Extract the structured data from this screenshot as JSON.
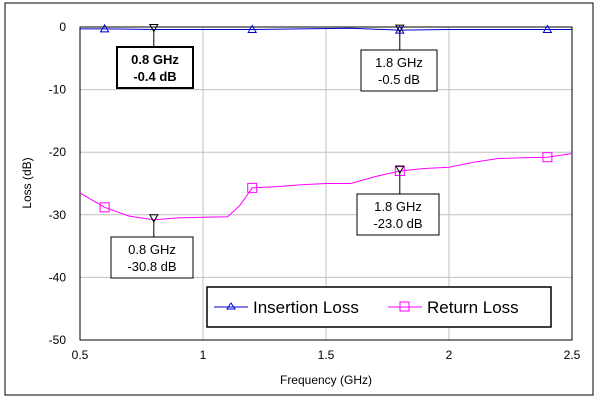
{
  "chart_data": {
    "type": "line",
    "xlabel": "Frequency (GHz)",
    "ylabel": "Loss (dB)",
    "xlim": [
      0.5,
      2.5
    ],
    "ylim": [
      -50,
      0
    ],
    "xticks": [
      "0.5",
      "1",
      "1.5",
      "2",
      "2.5"
    ],
    "yticks": [
      "0",
      "-10",
      "-20",
      "-30",
      "-40",
      "-50"
    ],
    "grid": true,
    "legend_position": "bottom-right",
    "colors": {
      "insertion": "#0000cc",
      "return": "#ff00ff",
      "grid": "#c0c0c0"
    },
    "series": [
      {
        "name": "Insertion Loss",
        "marker": "triangle-up",
        "x": [
          0.5,
          0.6,
          0.8,
          1.0,
          1.2,
          1.4,
          1.6,
          1.8,
          2.0,
          2.2,
          2.4,
          2.5
        ],
        "y": [
          -0.3,
          -0.3,
          -0.4,
          -0.4,
          -0.4,
          -0.3,
          -0.2,
          -0.5,
          -0.4,
          -0.4,
          -0.4,
          -0.4
        ],
        "marker_x": [
          0.6,
          1.2,
          1.8,
          2.4
        ],
        "marker_y": [
          -0.3,
          -0.4,
          -0.5,
          -0.4
        ]
      },
      {
        "name": "Return Loss",
        "marker": "square",
        "x": [
          0.5,
          0.6,
          0.7,
          0.8,
          0.9,
          1.0,
          1.1,
          1.15,
          1.2,
          1.3,
          1.4,
          1.5,
          1.6,
          1.7,
          1.8,
          1.9,
          2.0,
          2.1,
          2.2,
          2.3,
          2.4,
          2.5
        ],
        "y": [
          -26.5,
          -28.8,
          -30.2,
          -30.8,
          -30.5,
          -30.4,
          -30.3,
          -28.5,
          -25.7,
          -25.5,
          -25.2,
          -25.0,
          -25.0,
          -23.9,
          -23.0,
          -22.6,
          -22.4,
          -21.6,
          -21.0,
          -20.9,
          -20.8,
          -20.2
        ],
        "marker_x": [
          0.6,
          1.2,
          1.8,
          2.4
        ],
        "marker_y": [
          -28.8,
          -25.7,
          -23.0,
          -20.8
        ]
      }
    ],
    "annotations": [
      {
        "id": "il-08",
        "series": 0,
        "x": 0.8,
        "y": -0.4,
        "freq": "0.8 GHz",
        "value": "-0.4 dB",
        "bold": true
      },
      {
        "id": "il-18",
        "series": 0,
        "x": 1.8,
        "y": -0.5,
        "freq": "1.8 GHz",
        "value": "-0.5 dB",
        "bold": false
      },
      {
        "id": "rl-08",
        "series": 1,
        "x": 0.8,
        "y": -30.8,
        "freq": "0.8 GHz",
        "value": "-30.8 dB",
        "bold": false
      },
      {
        "id": "rl-18",
        "series": 1,
        "x": 1.8,
        "y": -23.0,
        "freq": "1.8 GHz",
        "value": "-23.0 dB",
        "bold": false
      }
    ]
  }
}
